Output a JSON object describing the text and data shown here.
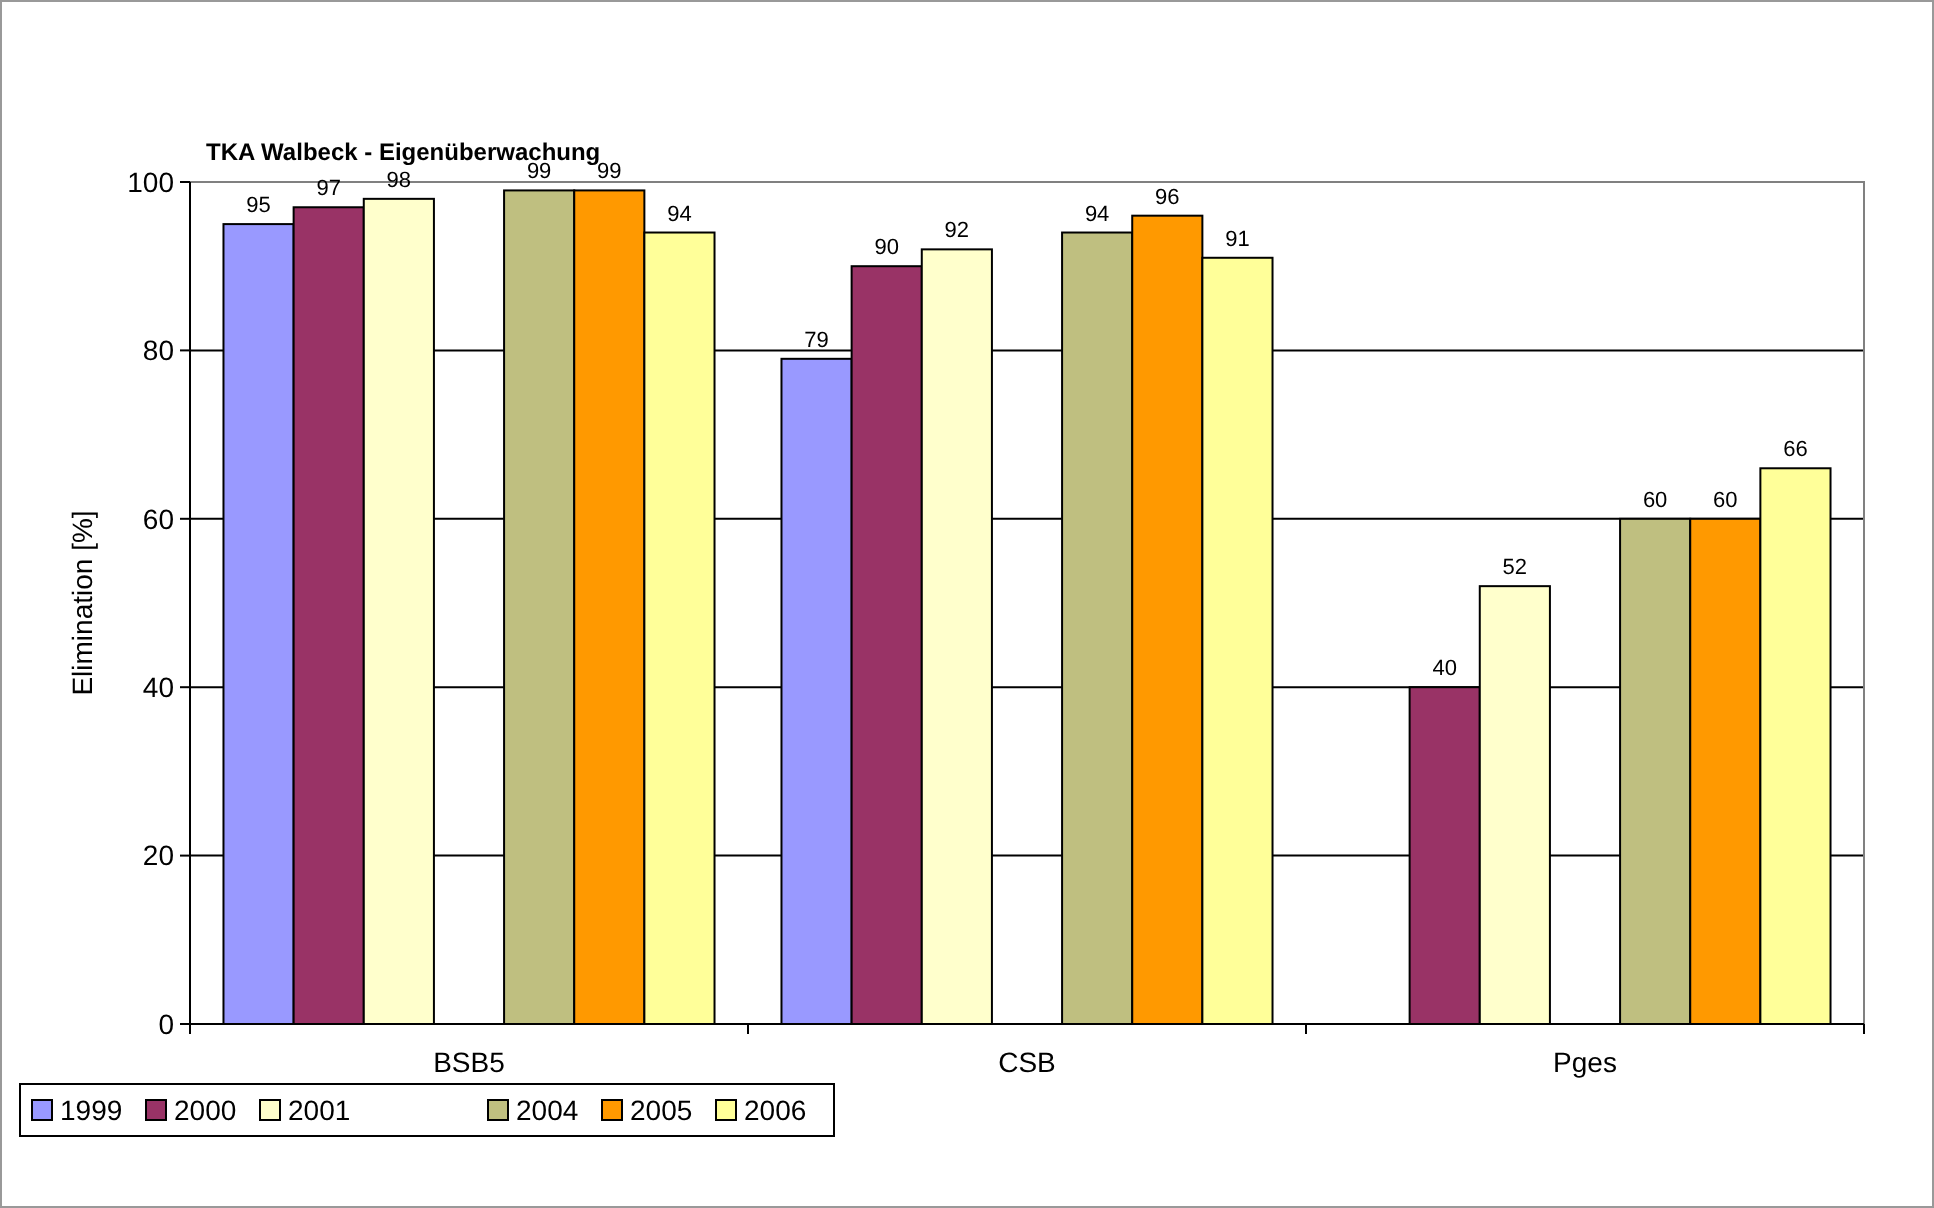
{
  "chart_data": {
    "type": "bar",
    "title": "TKA Walbeck - Eigenüberwachung",
    "ylabel": "Elimination [%]",
    "categories": [
      "BSB5",
      "CSB",
      "Pges"
    ],
    "series": [
      {
        "name": "1999",
        "color": "#9999ff",
        "values": [
          95,
          79,
          null
        ]
      },
      {
        "name": "2000",
        "color": "#993366",
        "values": [
          97,
          90,
          40
        ]
      },
      {
        "name": "2001",
        "color": "#ffffcc",
        "values": [
          98,
          92,
          52
        ]
      },
      {
        "values": [
          null,
          null,
          null
        ]
      },
      {
        "name": "2004",
        "color": "#bfbf80",
        "values": [
          99,
          94,
          60
        ]
      },
      {
        "name": "2005",
        "color": "#ff9900",
        "values": [
          99,
          96,
          60
        ]
      },
      {
        "name": "2006",
        "color": "#ffff99",
        "values": [
          94,
          91,
          66
        ]
      }
    ],
    "ylim": [
      0,
      100
    ],
    "yticks": [
      0,
      20,
      40,
      60,
      80,
      100
    ],
    "grid": "y",
    "data_labels": true,
    "legend": "bottom left"
  }
}
